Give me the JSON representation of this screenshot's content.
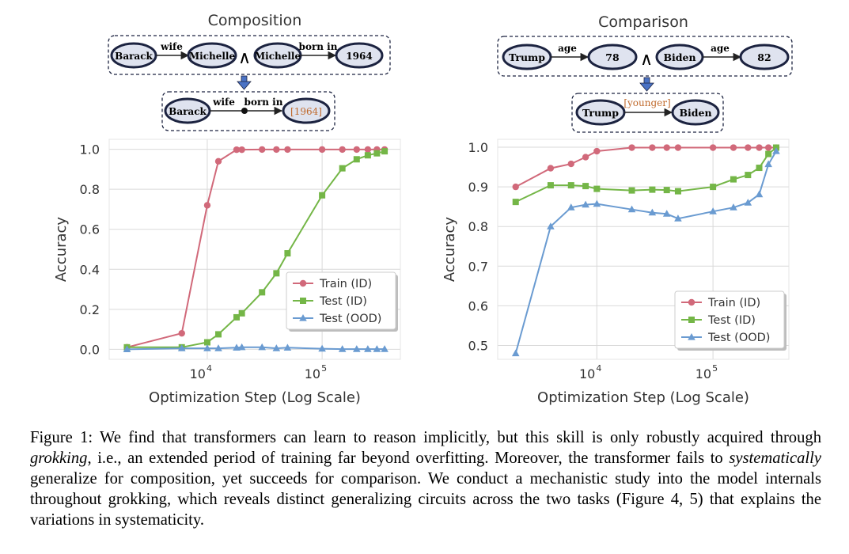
{
  "panels": [
    {
      "title": "Composition",
      "diagram": {
        "top_nodes": [
          "Barack",
          "Michelle",
          "Michelle",
          "1964"
        ],
        "top_edges": [
          "wife",
          "born in"
        ],
        "bottom_nodes": [
          "Barack",
          "[1964]"
        ],
        "bottom_edges": [
          "wife",
          "born in"
        ]
      }
    },
    {
      "title": "Comparison",
      "diagram": {
        "top_nodes": [
          "Trump",
          "78",
          "Biden",
          "82"
        ],
        "top_edges": [
          "age",
          "age"
        ],
        "bottom_nodes": [
          "Trump",
          "Biden"
        ],
        "bottom_edges": [
          "[younger]"
        ]
      }
    }
  ],
  "conj_symbol": "∧",
  "colors": {
    "train": "#d1697a",
    "test_id": "#74b647",
    "test_ood": "#6a9bd1",
    "answer": "#c0692b",
    "node_fill": "#dfe3ef",
    "node_stroke": "#1c2340"
  },
  "chart_data": [
    {
      "type": "line",
      "xscale": "log",
      "xlim": [
        1400,
        480000
      ],
      "ylim": [
        -0.05,
        1.05
      ],
      "yticks": [
        "0.0",
        "0.2",
        "0.4",
        "0.6",
        "0.8",
        "1.0"
      ],
      "ytick_values": [
        0.0,
        0.2,
        0.4,
        0.6,
        0.8,
        1.0
      ],
      "xticks": [
        {
          "base": "10",
          "exp": "4",
          "value": 10000
        },
        {
          "base": "10",
          "exp": "5",
          "value": 100000
        }
      ],
      "xlabel": "Optimization Step (Log Scale)",
      "ylabel": "Accuracy",
      "grid": true,
      "legend": "center-right",
      "series": [
        {
          "name": "Train (ID)",
          "marker": "circle",
          "x": [
            2000,
            6000,
            10000,
            12500,
            18000,
            20000,
            30000,
            40000,
            50000,
            100000,
            150000,
            200000,
            250000,
            300000,
            350000
          ],
          "y": [
            0.01,
            0.08,
            0.72,
            0.94,
            0.998,
            0.998,
            0.999,
            0.999,
            0.999,
            0.999,
            0.999,
            0.999,
            0.999,
            0.999,
            0.999
          ]
        },
        {
          "name": "Test (ID)",
          "marker": "square",
          "x": [
            2000,
            6000,
            10000,
            12500,
            18000,
            20000,
            30000,
            40000,
            50000,
            100000,
            150000,
            200000,
            250000,
            300000,
            350000
          ],
          "y": [
            0.01,
            0.01,
            0.035,
            0.075,
            0.16,
            0.18,
            0.285,
            0.38,
            0.48,
            0.77,
            0.905,
            0.95,
            0.97,
            0.98,
            0.99
          ]
        },
        {
          "name": "Test (OOD)",
          "marker": "triangle",
          "x": [
            2000,
            6000,
            10000,
            12500,
            18000,
            20000,
            30000,
            40000,
            50000,
            100000,
            150000,
            200000,
            250000,
            300000,
            350000
          ],
          "y": [
            0.0,
            0.005,
            0.005,
            0.005,
            0.008,
            0.01,
            0.01,
            0.005,
            0.008,
            0.003,
            0.001,
            0.001,
            0.001,
            0.001,
            0.001
          ]
        }
      ]
    },
    {
      "type": "line",
      "xscale": "log",
      "xlim": [
        1400,
        450000
      ],
      "ylim": [
        0.465,
        1.02
      ],
      "yticks": [
        "0.5",
        "0.6",
        "0.7",
        "0.8",
        "0.9",
        "1.0"
      ],
      "ytick_values": [
        0.5,
        0.6,
        0.7,
        0.8,
        0.9,
        1.0
      ],
      "xticks": [
        {
          "base": "10",
          "exp": "4",
          "value": 10000
        },
        {
          "base": "10",
          "exp": "5",
          "value": 100000
        }
      ],
      "xlabel": "Optimization Step (Log Scale)",
      "ylabel": "Accuracy",
      "grid": true,
      "legend": "lower-right",
      "series": [
        {
          "name": "Train (ID)",
          "marker": "circle",
          "x": [
            2000,
            4000,
            6000,
            8000,
            10000,
            20000,
            30000,
            40000,
            50000,
            100000,
            150000,
            200000,
            250000,
            300000,
            350000
          ],
          "y": [
            0.9,
            0.947,
            0.958,
            0.975,
            0.99,
            0.999,
            0.999,
            0.999,
            0.999,
            0.999,
            0.999,
            0.999,
            0.999,
            0.999,
            0.999
          ]
        },
        {
          "name": "Test (ID)",
          "marker": "square",
          "x": [
            2000,
            4000,
            6000,
            8000,
            10000,
            20000,
            30000,
            40000,
            50000,
            100000,
            150000,
            200000,
            250000,
            300000,
            350000
          ],
          "y": [
            0.862,
            0.904,
            0.904,
            0.902,
            0.895,
            0.891,
            0.893,
            0.892,
            0.889,
            0.9,
            0.919,
            0.93,
            0.948,
            0.983,
            0.999
          ]
        },
        {
          "name": "Test (OOD)",
          "marker": "triangle",
          "x": [
            2000,
            4000,
            6000,
            8000,
            10000,
            20000,
            30000,
            40000,
            50000,
            100000,
            150000,
            200000,
            250000,
            300000,
            350000
          ],
          "y": [
            0.48,
            0.8,
            0.848,
            0.855,
            0.857,
            0.843,
            0.835,
            0.832,
            0.82,
            0.838,
            0.848,
            0.86,
            0.881,
            0.957,
            0.99
          ]
        }
      ]
    }
  ],
  "caption": {
    "label": "Figure 1:",
    "t1": " We find that transformers can learn to reason implicitly, but this skill is only robustly acquired through ",
    "em1": "grokking",
    "t2": ", i.e., an extended period of training far beyond overfitting. Moreover, the transformer fails to ",
    "em2": "systematically",
    "t3": " generalize for composition, yet succeeds for comparison. We conduct a mechanistic study into the model internals throughout grokking, which reveals distinct generalizing circuits across the two tasks (Figure 4, 5) that explains the variations in systematicity."
  }
}
